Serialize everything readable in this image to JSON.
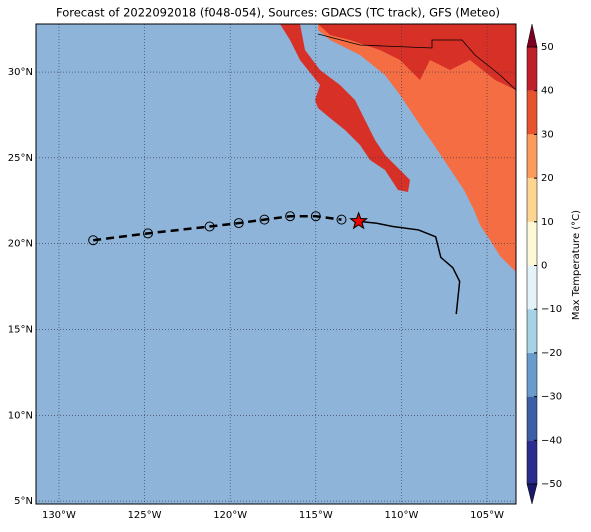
{
  "map": {
    "title": "Forecast of 2022092018 (f048-054), Sources: GDACS (TC track), GFS (Meteo)",
    "lonlim": [
      -131.34,
      -103.31
    ],
    "latlim": [
      4.83,
      32.8
    ],
    "lon_ticks": [
      {
        "value": -130,
        "label": "130°W"
      },
      {
        "value": -125,
        "label": "125°W"
      },
      {
        "value": -120,
        "label": "120°W"
      },
      {
        "value": -115,
        "label": "115°W"
      },
      {
        "value": -110,
        "label": "110°W"
      },
      {
        "value": -105,
        "label": "105°W"
      }
    ],
    "lat_ticks": [
      {
        "value": 5,
        "label": "5°N"
      },
      {
        "value": 10,
        "label": "10°N"
      },
      {
        "value": 15,
        "label": "15°N"
      },
      {
        "value": 20,
        "label": "20°N"
      },
      {
        "value": 25,
        "label": "25°N"
      },
      {
        "value": 30,
        "label": "30°N"
      }
    ],
    "forecast_track": {
      "lon": [
        -128,
        -124.8,
        -121.2,
        -119.5,
        -118,
        -116.5,
        -115,
        -113.5
      ],
      "lat": [
        20.2,
        20.6,
        21.0,
        21.2,
        21.4,
        21.6,
        21.6,
        21.4
      ]
    },
    "current_position": {
      "lon": -112.5,
      "lat": 21.3
    },
    "past_track": {
      "lon": [
        -112.5,
        -111.5,
        -110.5,
        -109,
        -108,
        -107.7,
        -107,
        -106.6,
        -106.8
      ],
      "lat": [
        21.3,
        21.2,
        21.0,
        20.8,
        20.4,
        19.2,
        18.6,
        17.8,
        15.9
      ]
    },
    "colorbar": {
      "label": "Max Temperature (°C)",
      "lim": [
        -50,
        50
      ],
      "levels": [
        -50,
        -40,
        -30,
        -20,
        -10,
        0,
        10,
        20,
        30,
        40,
        50
      ],
      "colors": [
        "#2b2d8e",
        "#3d5fa8",
        "#6a9ccb",
        "#a6d2e6",
        "#e4f3f7",
        "#fff8d6",
        "#fed590",
        "#fb9b5c",
        "#e8532f",
        "#c0202a"
      ],
      "extend_colors": [
        "#1b1a6a",
        "#7c0020"
      ],
      "ticks": [
        {
          "value": -50,
          "label": "−50"
        },
        {
          "value": -40,
          "label": "−40"
        },
        {
          "value": -30,
          "label": "−30"
        },
        {
          "value": -20,
          "label": "−20"
        },
        {
          "value": -10,
          "label": "−10"
        },
        0,
        10,
        20,
        30,
        40,
        50
      ]
    }
  }
}
